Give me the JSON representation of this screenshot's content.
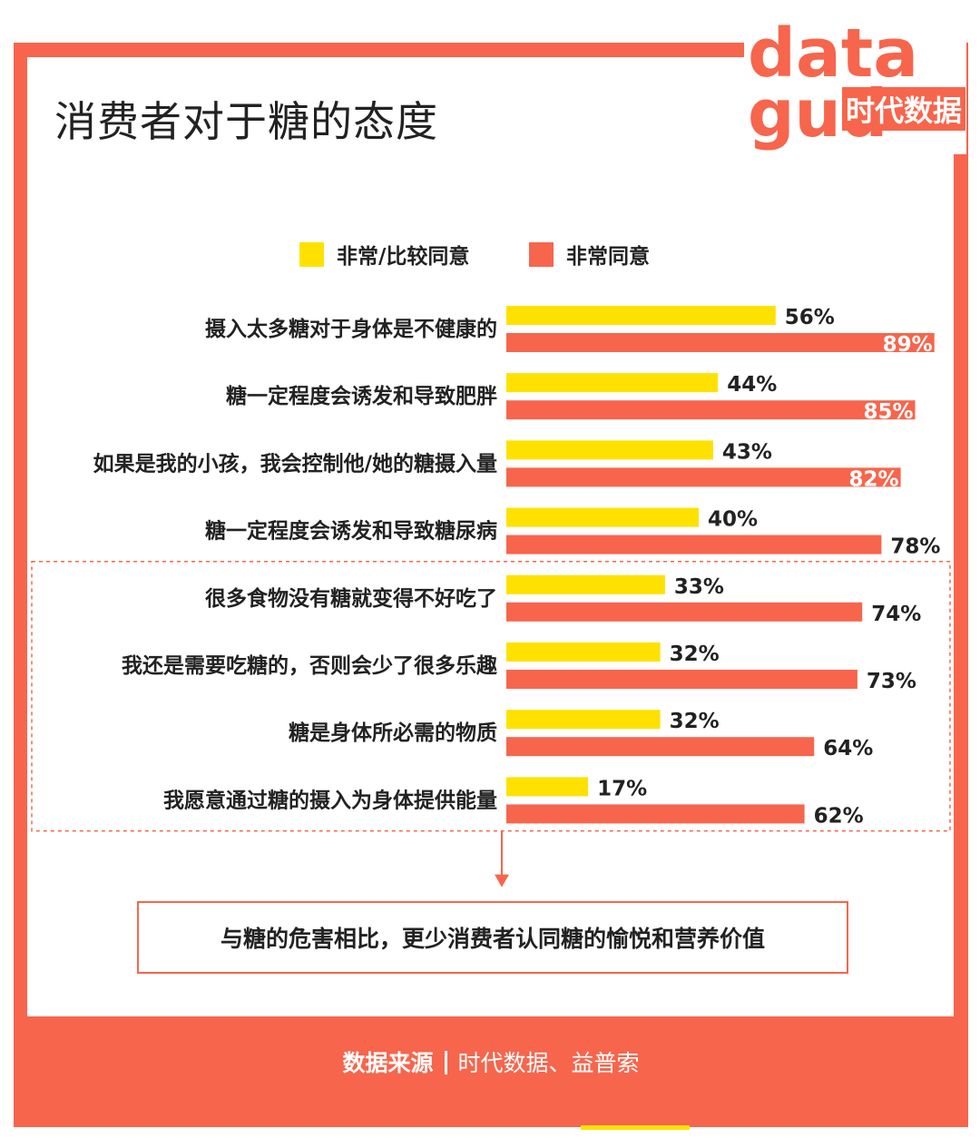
{
  "title": "消费者对于糖的态度",
  "logo": {
    "text_top": "data",
    "text_bottom": "gud",
    "cn": "时代数据"
  },
  "legend": [
    {
      "label": "非常/比较同意",
      "color": "#ffe100"
    },
    {
      "label": "非常同意",
      "color": "#f7654c"
    }
  ],
  "chart_data": {
    "type": "bar",
    "orientation": "horizontal",
    "title": "消费者对于糖的态度",
    "xlim": [
      0,
      100
    ],
    "unit": "%",
    "categories": [
      "摄入太多糖对于身体是不健康的",
      "糖一定程度会诱发和导致肥胖",
      "如果是我的小孩，我会控制他/她的糖摄入量",
      "糖一定程度会诱发和导致糖尿病",
      "很多食物没有糖就变得不好吃了",
      "我还是需要吃糖的，否则会少了很多乐趣",
      "糖是身体所必需的物质",
      "我愿意通过糖的摄入为身体提供能量"
    ],
    "series": [
      {
        "name": "非常/比较同意",
        "color": "#ffe100",
        "values": [
          56,
          44,
          43,
          40,
          33,
          32,
          32,
          17
        ],
        "labels": [
          "56%",
          "44%",
          "43%",
          "40%",
          "33%",
          "32%",
          "32%",
          "17%"
        ]
      },
      {
        "name": "非常同意",
        "color": "#f7654c",
        "values": [
          89,
          85,
          82,
          78,
          74,
          73,
          64,
          62
        ],
        "labels": [
          "89%",
          "85%",
          "82%",
          "78%",
          "74%",
          "73%",
          "64%",
          "62%"
        ]
      }
    ],
    "highlight_group": [
      4,
      5,
      6,
      7
    ]
  },
  "callout": "与糖的危害相比，更少消费者认同糖的愉悦和营养价值",
  "footer": {
    "label": "数据来源",
    "source": "时代数据、益普索"
  }
}
